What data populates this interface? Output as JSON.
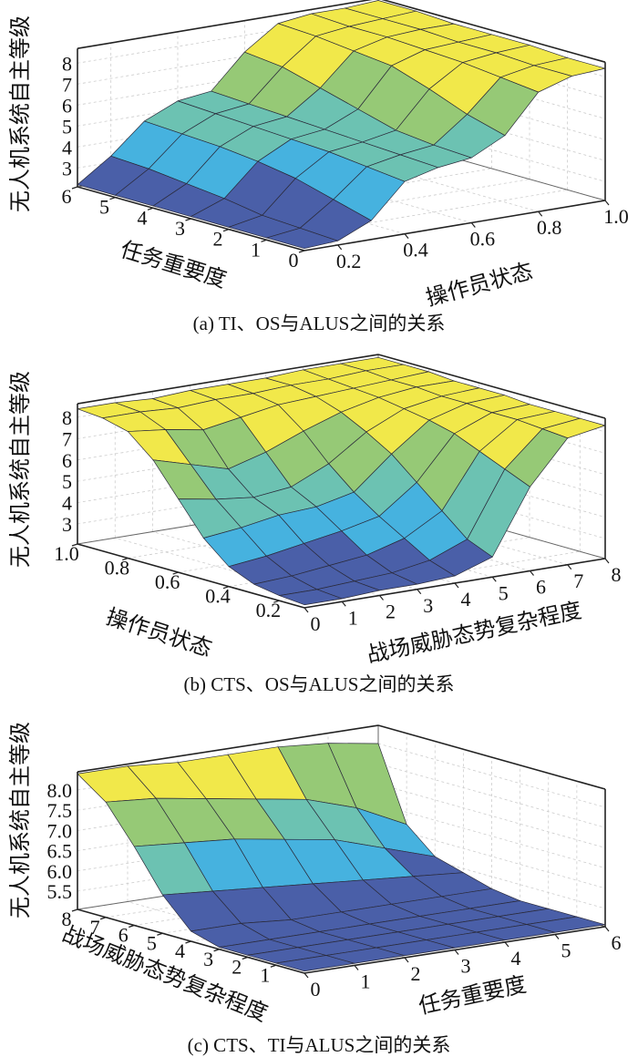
{
  "chart_data": [
    {
      "type": "surface",
      "caption": "(a) TI、OS与ALUS之间的关系",
      "zlabel": "无人机系统自主等级",
      "left_axis": {
        "label": "任务重要度",
        "range": [
          0,
          6
        ],
        "ticks": [
          "0",
          "1",
          "2",
          "3",
          "4",
          "5",
          "6"
        ],
        "tick_values": [
          0,
          1,
          2,
          3,
          4,
          5,
          6
        ]
      },
      "right_axis": {
        "label": "操作员状态",
        "range": [
          0.1,
          1.0
        ],
        "ticks": [
          "0.2",
          "0.4",
          "0.6",
          "0.8",
          "1.0"
        ],
        "tick_values": [
          0.2,
          0.4,
          0.6,
          0.8,
          1.0
        ]
      },
      "z_axis": {
        "range": [
          2.1,
          8.7
        ],
        "ticks": [
          "3",
          "4",
          "5",
          "6",
          "7",
          "8"
        ],
        "tick_values": [
          3,
          4,
          5,
          6,
          7,
          8
        ]
      },
      "rows": [
        0,
        1,
        2,
        3,
        4,
        5,
        6
      ],
      "cols": [
        0.1,
        0.2,
        0.3,
        0.4,
        0.5,
        0.6,
        0.7,
        0.8,
        0.9,
        1.0
      ],
      "z": [
        [
          2.2,
          2.3,
          3.0,
          4.6,
          5.0,
          5.2,
          6.0,
          7.8,
          8.3,
          8.4
        ],
        [
          2.2,
          2.4,
          3.5,
          4.8,
          5.1,
          5.3,
          6.5,
          8.0,
          8.3,
          8.4
        ],
        [
          2.2,
          2.5,
          4.0,
          5.0,
          5.2,
          5.5,
          7.2,
          8.2,
          8.4,
          8.5
        ],
        [
          2.2,
          2.8,
          4.3,
          5.1,
          5.3,
          6.0,
          7.8,
          8.3,
          8.4,
          8.5
        ],
        [
          2.2,
          3.0,
          4.5,
          5.2,
          5.4,
          6.5,
          8.0,
          8.4,
          8.5,
          8.5
        ],
        [
          2.2,
          3.2,
          4.6,
          5.3,
          5.5,
          7.0,
          8.2,
          8.4,
          8.5,
          8.6
        ],
        [
          2.2,
          3.3,
          4.7,
          5.4,
          5.6,
          7.2,
          8.3,
          8.5,
          8.5,
          8.6
        ]
      ],
      "grid": true
    },
    {
      "type": "surface",
      "caption": "(b) CTS、OS与ALUS之间的关系",
      "zlabel": "无人机系统自主等级",
      "left_axis": {
        "label": "操作员状态",
        "range": [
          0.1,
          1.0
        ],
        "ticks": [
          "0.2",
          "0.4",
          "0.6",
          "0.8",
          "1.0"
        ],
        "tick_values": [
          0.2,
          0.4,
          0.6,
          0.8,
          1.0
        ]
      },
      "right_axis": {
        "label": "战场威胁态势复杂程度",
        "range": [
          0,
          8
        ],
        "ticks": [
          "0",
          "1",
          "2",
          "3",
          "4",
          "5",
          "6",
          "7",
          "8"
        ],
        "tick_values": [
          0,
          1,
          2,
          3,
          4,
          5,
          6,
          7,
          8
        ]
      },
      "z_axis": {
        "range": [
          2.06,
          8.64
        ],
        "ticks": [
          "3",
          "4",
          "5",
          "6",
          "7",
          "8"
        ],
        "tick_values": [
          3,
          4,
          5,
          6,
          7,
          8
        ]
      },
      "rows": [
        0.1,
        0.2,
        0.3,
        0.4,
        0.5,
        0.6,
        0.7,
        0.8,
        0.9,
        1.0
      ],
      "cols": [
        0,
        1,
        2,
        3,
        4,
        5,
        6,
        7,
        8
      ],
      "z": [
        [
          2.2,
          2.2,
          2.3,
          2.3,
          2.4,
          3.0,
          6.0,
          8.0,
          8.3
        ],
        [
          2.3,
          2.3,
          2.4,
          2.5,
          2.8,
          3.5,
          6.5,
          8.1,
          8.3
        ],
        [
          2.5,
          2.6,
          2.8,
          3.0,
          3.5,
          4.5,
          7.0,
          8.2,
          8.3
        ],
        [
          3.0,
          3.2,
          3.5,
          3.8,
          4.2,
          5.5,
          7.5,
          8.2,
          8.3
        ],
        [
          4.0,
          4.2,
          4.5,
          4.6,
          5.0,
          6.5,
          7.8,
          8.3,
          8.4
        ],
        [
          5.5,
          5.2,
          5.0,
          5.2,
          6.0,
          7.2,
          8.0,
          8.3,
          8.4
        ],
        [
          7.0,
          6.5,
          6.0,
          6.5,
          7.2,
          7.8,
          8.2,
          8.4,
          8.4
        ],
        [
          8.0,
          7.8,
          7.5,
          7.8,
          8.1,
          8.2,
          8.3,
          8.4,
          8.5
        ],
        [
          8.3,
          8.3,
          8.2,
          8.3,
          8.3,
          8.4,
          8.4,
          8.5,
          8.5
        ],
        [
          8.4,
          8.4,
          8.3,
          8.4,
          8.4,
          8.4,
          8.5,
          8.5,
          8.5
        ]
      ],
      "grid": true
    },
    {
      "type": "surface",
      "caption": "(c) CTS、TI与ALUS之间的关系",
      "zlabel": "无人机系统自主等级",
      "left_axis": {
        "label": "战场威胁态势复杂程度",
        "range": [
          0,
          8
        ],
        "ticks": [
          "1",
          "2",
          "3",
          "4",
          "5",
          "6",
          "7",
          "8"
        ],
        "tick_values": [
          1,
          2,
          3,
          4,
          5,
          6,
          7,
          8
        ]
      },
      "right_axis": {
        "label": "任务重要度",
        "range": [
          0,
          6
        ],
        "ticks": [
          "0",
          "1",
          "2",
          "3",
          "4",
          "5",
          "6"
        ],
        "tick_values": [
          0,
          1,
          2,
          3,
          4,
          5,
          6
        ]
      },
      "z_axis": {
        "range": [
          5.05,
          8.45
        ],
        "ticks": [
          "5.5",
          "6.0",
          "6.5",
          "7.0",
          "7.5",
          "8.0"
        ],
        "tick_values": [
          5.5,
          6.0,
          6.5,
          7.0,
          7.5,
          8.0
        ]
      },
      "rows": [
        0,
        1,
        2,
        3,
        4,
        5,
        6,
        7,
        8
      ],
      "cols": [
        0,
        1,
        2,
        3,
        4,
        5,
        6
      ],
      "z": [
        [
          5.1,
          5.1,
          5.1,
          5.1,
          5.1,
          5.1,
          5.1
        ],
        [
          5.1,
          5.1,
          5.1,
          5.1,
          5.1,
          5.1,
          5.1
        ],
        [
          5.1,
          5.1,
          5.1,
          5.1,
          5.1,
          5.1,
          5.1
        ],
        [
          5.1,
          5.1,
          5.1,
          5.1,
          5.1,
          5.1,
          5.1
        ],
        [
          5.3,
          5.3,
          5.2,
          5.2,
          5.2,
          5.2,
          5.2
        ],
        [
          6.0,
          5.9,
          5.8,
          5.7,
          5.6,
          5.5,
          5.4
        ],
        [
          7.0,
          6.9,
          6.8,
          6.6,
          6.4,
          6.0,
          5.6
        ],
        [
          7.9,
          7.8,
          7.6,
          7.4,
          7.2,
          6.8,
          6.2
        ],
        [
          8.4,
          8.4,
          8.3,
          8.3,
          8.3,
          8.2,
          8.0
        ]
      ],
      "grid": true
    }
  ],
  "colormap": [
    "#4a5fa8",
    "#46b2df",
    "#6cc2b2",
    "#96c976",
    "#f1e84a"
  ]
}
